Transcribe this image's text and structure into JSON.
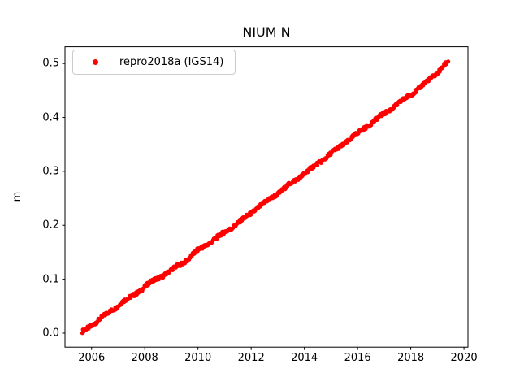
{
  "figure": {
    "title": "NIUM N",
    "background_color": "#ffffff"
  },
  "axes": {
    "ylabel": "m",
    "xlabel": "",
    "spine_color": "#000000"
  },
  "legend": {
    "position": "upper left",
    "entries": [
      {
        "label": "repro2018a (IGS14)",
        "marker": "dot-icon",
        "color": "#ff0000"
      }
    ]
  },
  "chart_data": {
    "type": "scatter",
    "title": "NIUM N",
    "xlabel": "",
    "ylabel": "m",
    "xlim": [
      2005.0,
      2020.15
    ],
    "ylim": [
      -0.026,
      0.531
    ],
    "xticks": [
      2006,
      2008,
      2010,
      2012,
      2014,
      2016,
      2018,
      2020
    ],
    "yticks": [
      0.0,
      0.1,
      0.2,
      0.3,
      0.4,
      0.5
    ],
    "grid": false,
    "legend_position": "upper left",
    "series": [
      {
        "name": "repro2018a (IGS14)",
        "color": "#ff0000",
        "marker": "point",
        "marker_radius_px": 2.4,
        "sample_step_years": 0.02,
        "noise_m": 0.0032,
        "x_start": 2005.65,
        "x_end": 2019.42,
        "trend_keypoints": [
          [
            2005.65,
            0.002
          ],
          [
            2006.0,
            0.014
          ],
          [
            2006.3,
            0.026
          ],
          [
            2006.7,
            0.04
          ],
          [
            2007.0,
            0.051
          ],
          [
            2007.15,
            0.058
          ],
          [
            2007.4,
            0.064
          ],
          [
            2007.8,
            0.078
          ],
          [
            2008.1,
            0.09
          ],
          [
            2008.35,
            0.098
          ],
          [
            2008.7,
            0.107
          ],
          [
            2009.0,
            0.117
          ],
          [
            2009.35,
            0.128
          ],
          [
            2009.6,
            0.136
          ],
          [
            2009.75,
            0.143
          ],
          [
            2009.95,
            0.152
          ],
          [
            2010.2,
            0.16
          ],
          [
            2010.6,
            0.173
          ],
          [
            2011.0,
            0.187
          ],
          [
            2011.4,
            0.2
          ],
          [
            2011.8,
            0.215
          ],
          [
            2012.2,
            0.231
          ],
          [
            2012.6,
            0.245
          ],
          [
            2013.0,
            0.259
          ],
          [
            2013.4,
            0.274
          ],
          [
            2013.8,
            0.289
          ],
          [
            2014.2,
            0.303
          ],
          [
            2014.6,
            0.318
          ],
          [
            2015.0,
            0.333
          ],
          [
            2015.4,
            0.348
          ],
          [
            2015.8,
            0.363
          ],
          [
            2016.2,
            0.378
          ],
          [
            2016.6,
            0.393
          ],
          [
            2017.0,
            0.407
          ],
          [
            2017.4,
            0.421
          ],
          [
            2017.8,
            0.435
          ],
          [
            2018.2,
            0.45
          ],
          [
            2018.6,
            0.466
          ],
          [
            2019.0,
            0.483
          ],
          [
            2019.2,
            0.494
          ],
          [
            2019.35,
            0.501
          ],
          [
            2019.42,
            0.504
          ]
        ],
        "outliers": [
          [
            2017.62,
            0.43
          ]
        ]
      }
    ]
  }
}
